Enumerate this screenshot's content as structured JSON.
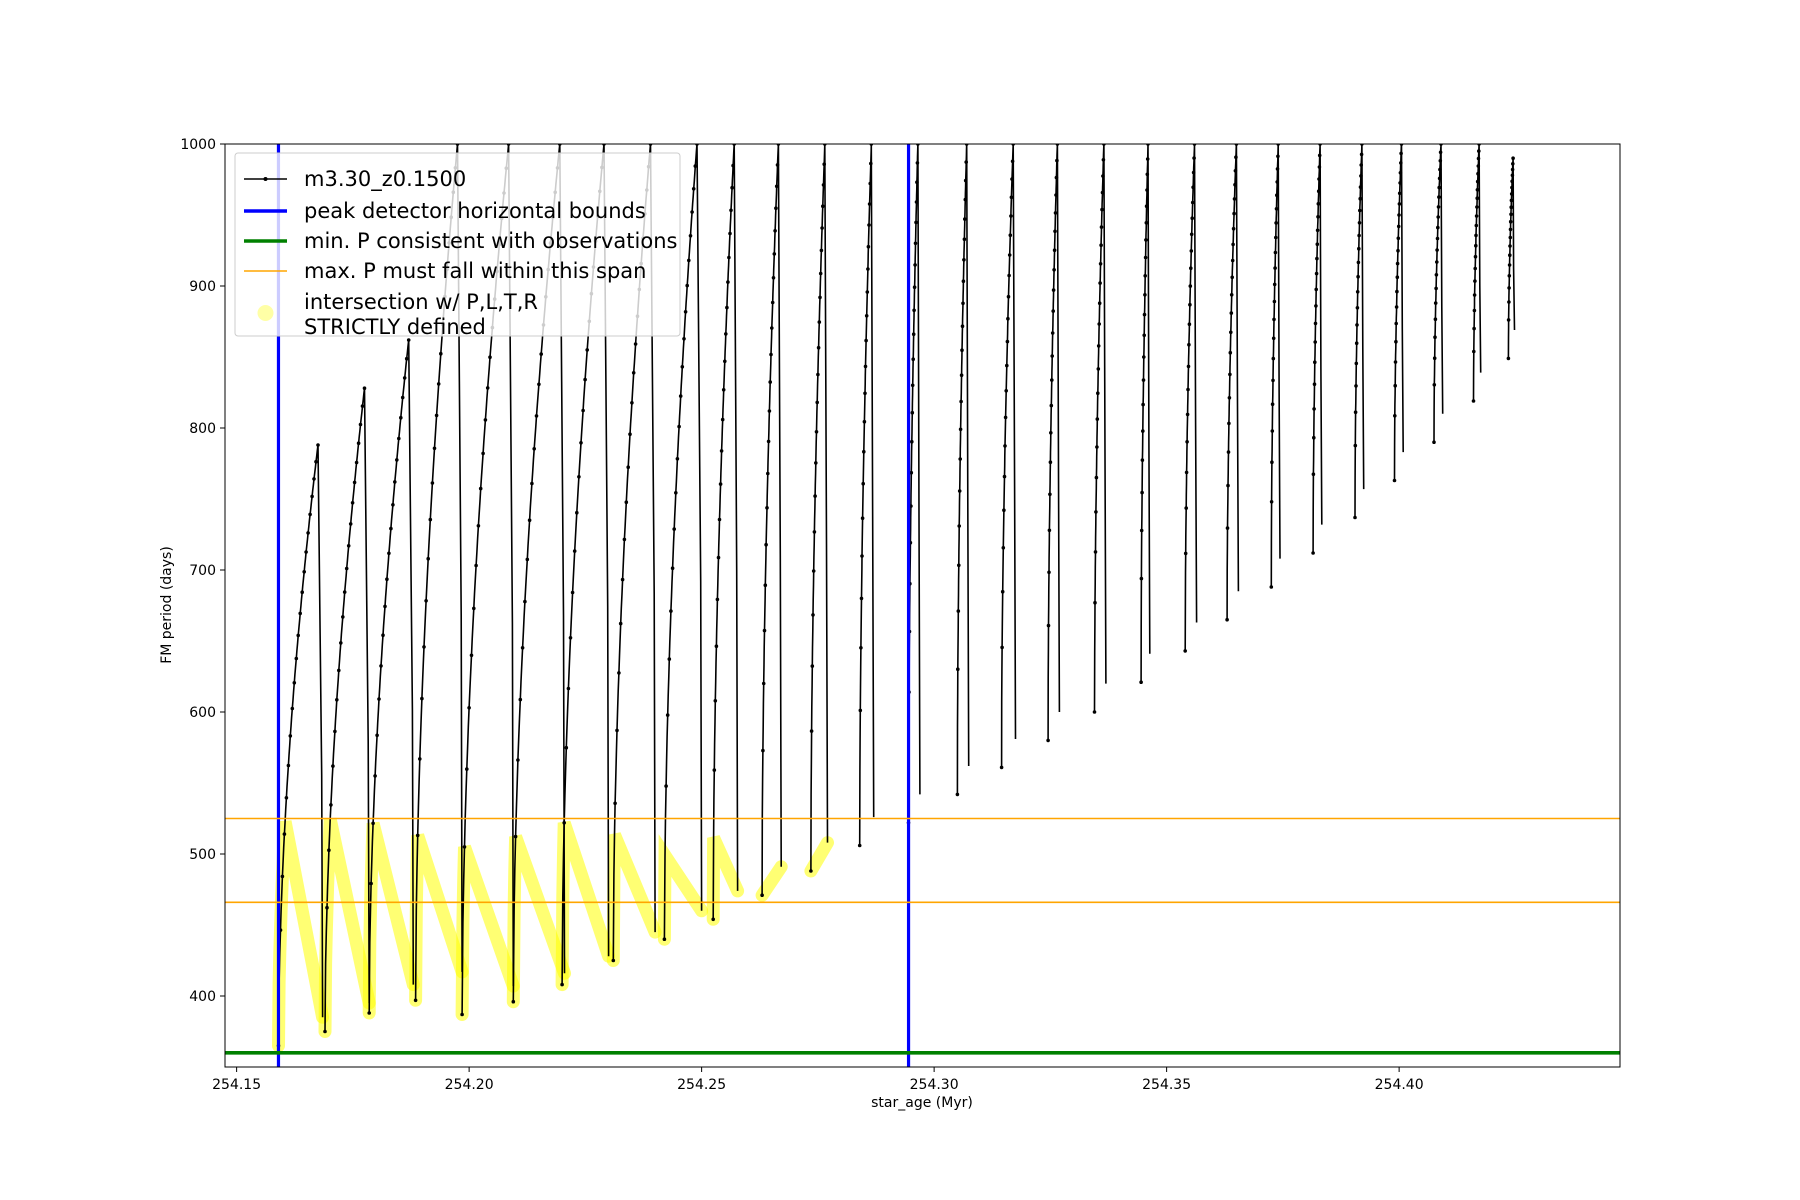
{
  "chart_data": {
    "type": "line",
    "xlabel": "star_age (Myr)",
    "ylabel": "FM period (days)",
    "xlim": [
      254.1475,
      254.4475
    ],
    "ylim": [
      350,
      1000
    ],
    "x_ticks": [
      254.15,
      254.2,
      254.25,
      254.3,
      254.35,
      254.4
    ],
    "x_tick_labels": [
      "254.15",
      "254.20",
      "254.25",
      "254.30",
      "254.35",
      "254.40"
    ],
    "y_ticks": [
      400,
      500,
      600,
      700,
      800,
      900,
      1000
    ],
    "y_tick_labels": [
      "400",
      "500",
      "600",
      "700",
      "800",
      "900",
      "1000"
    ],
    "grid": false,
    "legend_position": "top-left",
    "series": [
      {
        "name": "m3.30_z0.1500",
        "style": "line-with-point-markers",
        "color": "#000000",
        "description_note": "pulses: each pulse starts at a minimum period and rises to a peak period",
        "pulses": [
          {
            "x_start": 254.159,
            "x_peak": 254.1675,
            "p_min": 365,
            "p_peak": 788
          },
          {
            "x_start": 254.169,
            "x_peak": 254.1775,
            "p_min": 375,
            "p_peak": 828
          },
          {
            "x_start": 254.1785,
            "x_peak": 254.187,
            "p_min": 388,
            "p_peak": 862
          },
          {
            "x_start": 254.1885,
            "x_peak": 254.1975,
            "p_min": 397,
            "p_peak": 1000
          },
          {
            "x_start": 254.1985,
            "x_peak": 254.2085,
            "p_min": 387,
            "p_peak": 1000
          },
          {
            "x_start": 254.2095,
            "x_peak": 254.2195,
            "p_min": 396,
            "p_peak": 1000
          },
          {
            "x_start": 254.22,
            "x_peak": 254.229,
            "p_min": 408,
            "p_peak": 1000
          },
          {
            "x_start": 254.231,
            "x_peak": 254.239,
            "p_min": 425,
            "p_peak": 1000
          },
          {
            "x_start": 254.242,
            "x_peak": 254.249,
            "p_min": 440,
            "p_peak": 1000
          },
          {
            "x_start": 254.2525,
            "x_peak": 254.257,
            "p_min": 454,
            "p_peak": 1000
          },
          {
            "x_start": 254.263,
            "x_peak": 254.2665,
            "p_min": 471,
            "p_peak": 1000
          },
          {
            "x_start": 254.2735,
            "x_peak": 254.2765,
            "p_min": 488,
            "p_peak": 1000
          },
          {
            "x_start": 254.284,
            "x_peak": 254.2865,
            "p_min": 506,
            "p_peak": 1000
          },
          {
            "x_start": 254.2945,
            "x_peak": 254.2965,
            "p_min": 522,
            "p_peak": 1000
          },
          {
            "x_start": 254.305,
            "x_peak": 254.307,
            "p_min": 542,
            "p_peak": 1000
          },
          {
            "x_start": 254.3145,
            "x_peak": 254.317,
            "p_min": 561,
            "p_peak": 1000
          },
          {
            "x_start": 254.3245,
            "x_peak": 254.3265,
            "p_min": 580,
            "p_peak": 1000
          },
          {
            "x_start": 254.3345,
            "x_peak": 254.3365,
            "p_min": 600,
            "p_peak": 1000
          },
          {
            "x_start": 254.3445,
            "x_peak": 254.346,
            "p_min": 621,
            "p_peak": 1000
          },
          {
            "x_start": 254.354,
            "x_peak": 254.356,
            "p_min": 643,
            "p_peak": 1000
          },
          {
            "x_start": 254.363,
            "x_peak": 254.365,
            "p_min": 665,
            "p_peak": 1000
          },
          {
            "x_start": 254.3725,
            "x_peak": 254.374,
            "p_min": 688,
            "p_peak": 1000
          },
          {
            "x_start": 254.3815,
            "x_peak": 254.383,
            "p_min": 712,
            "p_peak": 1000
          },
          {
            "x_start": 254.3905,
            "x_peak": 254.392,
            "p_min": 737,
            "p_peak": 1000
          },
          {
            "x_start": 254.399,
            "x_peak": 254.4005,
            "p_min": 763,
            "p_peak": 1000
          },
          {
            "x_start": 254.4075,
            "x_peak": 254.409,
            "p_min": 790,
            "p_peak": 1000
          },
          {
            "x_start": 254.416,
            "x_peak": 254.4172,
            "p_min": 819,
            "p_peak": 1000
          },
          {
            "x_start": 254.4235,
            "x_peak": 254.4245,
            "p_min": 849,
            "p_peak": 990
          }
        ]
      },
      {
        "name": "peak detector horizontal bounds",
        "style": "vertical-lines",
        "color": "#0000ff",
        "x": [
          254.159,
          254.2945
        ]
      },
      {
        "name": "min. P consistent with observations",
        "style": "horizontal-line",
        "color": "#008000",
        "y": 360
      },
      {
        "name": "max. P must fall within this span",
        "style": "horizontal-lines",
        "color": "#ffa500",
        "y": [
          466,
          525
        ]
      },
      {
        "name": "intersection w/ P,L,T,R\nSTRICTLY defined",
        "style": "highlight-markers",
        "color": "#ffff00",
        "note": "highlights black curve where period lies between min. P and upper span bound within the peak detector bounds"
      }
    ],
    "legend_entries": [
      {
        "label": "m3.30_z0.1500",
        "color": "#000000",
        "marker": "line-dot"
      },
      {
        "label": "peak detector horizontal bounds",
        "color": "#0000ff",
        "marker": "thick-line"
      },
      {
        "label": "min. P consistent with observations",
        "color": "#008000",
        "marker": "thick-line"
      },
      {
        "label": "max. P must fall within this span",
        "color": "#ffa500",
        "marker": "thin-line"
      },
      {
        "label_lines": [
          "intersection w/ P,L,T,R",
          "STRICTLY defined"
        ],
        "color": "#ffff00",
        "marker": "circle"
      }
    ]
  }
}
